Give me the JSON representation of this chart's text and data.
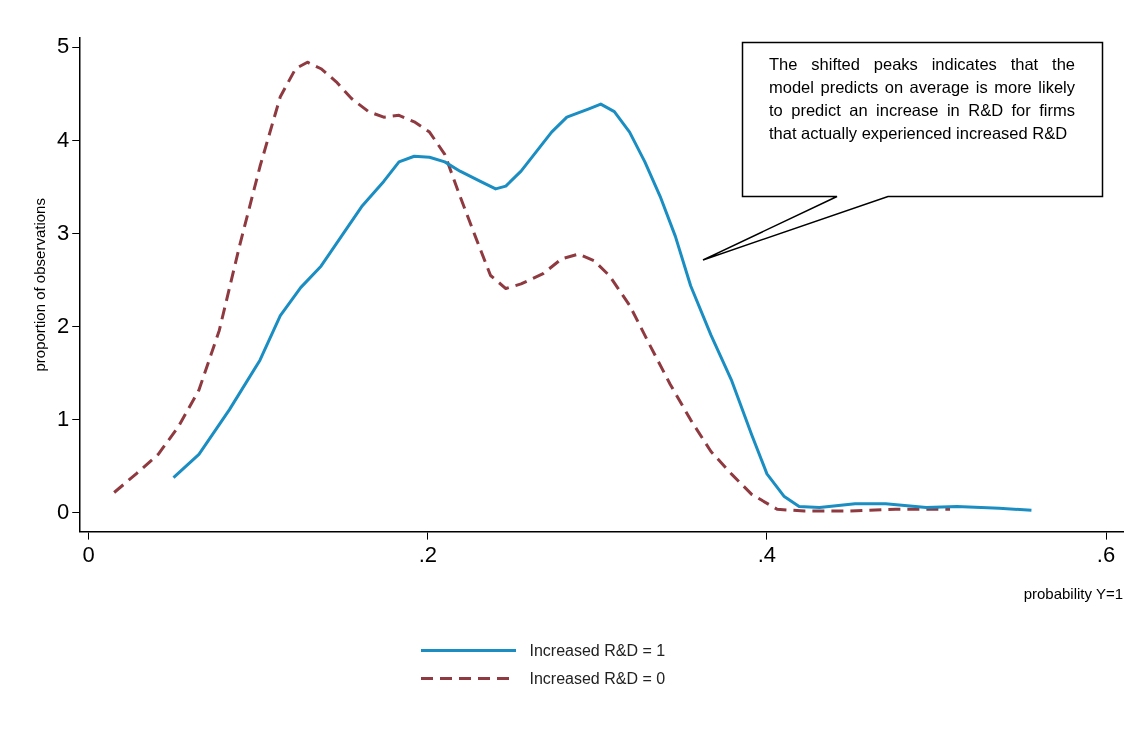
{
  "chart_data": {
    "type": "line",
    "xlabel": "probability Y=1",
    "ylabel": "proportion of observations",
    "xlim": [
      -0.005,
      0.61
    ],
    "ylim": [
      -0.2,
      5.1
    ],
    "xticks": [
      0,
      {
        "value": 0.2,
        "label": ".2"
      },
      {
        "value": 0.4,
        "label": ".4"
      },
      {
        "value": 0.6,
        "label": ".6"
      }
    ],
    "yticks": [
      0,
      1,
      2,
      3,
      4,
      5
    ],
    "grid": false,
    "legend": "bottom",
    "marker": "none",
    "series": [
      {
        "name": "Increased R&D = 1",
        "color": "#1a8ec2",
        "line_style": "solid",
        "x": [
          0.05,
          0.065,
          0.083,
          0.101,
          0.113,
          0.125,
          0.137,
          0.149,
          0.161,
          0.174,
          0.183,
          0.192,
          0.201,
          0.21,
          0.219,
          0.231,
          0.24,
          0.246,
          0.255,
          0.264,
          0.273,
          0.282,
          0.295,
          0.302,
          0.31,
          0.319,
          0.328,
          0.337,
          0.346,
          0.355,
          0.367,
          0.379,
          0.391,
          0.4,
          0.41,
          0.419,
          0.431,
          0.452,
          0.47,
          0.494,
          0.512,
          0.537,
          0.556
        ],
        "values": [
          0.38,
          0.63,
          1.11,
          1.64,
          2.12,
          2.42,
          2.65,
          2.97,
          3.29,
          3.56,
          3.77,
          3.83,
          3.82,
          3.77,
          3.67,
          3.56,
          3.48,
          3.51,
          3.67,
          3.88,
          4.09,
          4.25,
          4.34,
          4.39,
          4.31,
          4.09,
          3.77,
          3.4,
          2.97,
          2.44,
          1.91,
          1.43,
          0.84,
          0.42,
          0.18,
          0.07,
          0.06,
          0.1,
          0.1,
          0.06,
          0.07,
          0.05,
          0.03
        ]
      },
      {
        "name": "Increased R&D = 0",
        "color": "#8f3a40",
        "line_style": "dashed",
        "x": [
          0.015,
          0.028,
          0.041,
          0.053,
          0.065,
          0.077,
          0.089,
          0.101,
          0.113,
          0.122,
          0.129,
          0.137,
          0.146,
          0.155,
          0.165,
          0.174,
          0.183,
          0.192,
          0.201,
          0.21,
          0.219,
          0.228,
          0.237,
          0.246,
          0.255,
          0.268,
          0.279,
          0.289,
          0.298,
          0.307,
          0.319,
          0.331,
          0.343,
          0.355,
          0.367,
          0.379,
          0.391,
          0.406,
          0.422,
          0.446,
          0.476,
          0.508
        ],
        "values": [
          0.22,
          0.42,
          0.63,
          0.93,
          1.32,
          1.96,
          2.87,
          3.72,
          4.47,
          4.77,
          4.84,
          4.77,
          4.63,
          4.45,
          4.31,
          4.25,
          4.27,
          4.2,
          4.09,
          3.85,
          3.4,
          2.97,
          2.55,
          2.41,
          2.46,
          2.57,
          2.73,
          2.78,
          2.71,
          2.55,
          2.23,
          1.8,
          1.38,
          1.0,
          0.66,
          0.42,
          0.2,
          0.04,
          0.02,
          0.02,
          0.04,
          0.04
        ]
      }
    ],
    "annotations": [
      "The shifted peaks indicates that the model predicts on average is more likely to predict an increase in R&D for firms that actually experienced increased R&D"
    ]
  }
}
